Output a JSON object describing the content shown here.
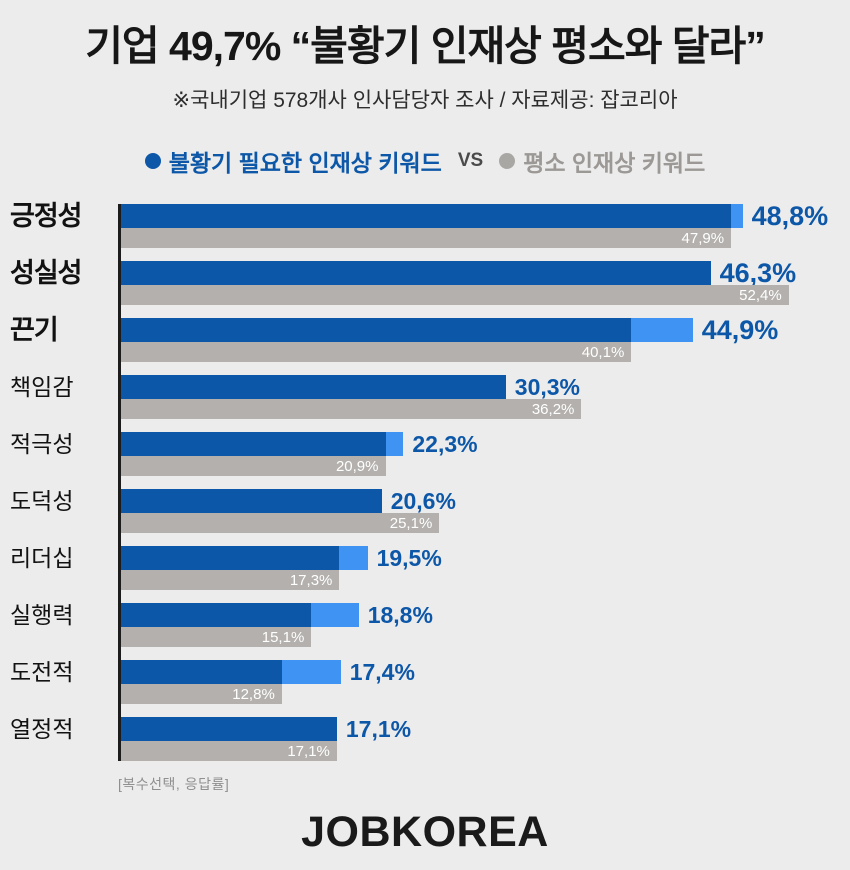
{
  "header": {
    "title": "기업 49,7% “불황기 인재상 평소와 달라”",
    "subtitle": "※국내기업 578개사 인사담당자 조사  / 자료제공: 잡코리아"
  },
  "legend": {
    "series1_label": "불황기 필요한 인재상 키워드",
    "vs_label": "VS",
    "series2_label": "평소 인재상 키워드"
  },
  "chart_data": {
    "type": "bar",
    "orientation": "horizontal",
    "title": "기업 49,7% “불황기 인재상 평소와 달라”",
    "categories": [
      "긍정성",
      "성실성",
      "끈기",
      "책임감",
      "적극성",
      "도덕성",
      "리더십",
      "실행력",
      "도전적",
      "열정적"
    ],
    "series": [
      {
        "name": "불황기 필요한 인재상 키워드",
        "color": "#0d57a8",
        "excess_color": "#3f93f2",
        "values": [
          48.8,
          46.3,
          44.9,
          30.3,
          22.3,
          20.6,
          19.5,
          18.8,
          17.4,
          17.1
        ],
        "labels": [
          "48,8%",
          "46,3%",
          "44,9%",
          "30,3%",
          "22,3%",
          "20,6%",
          "19,5%",
          "18,8%",
          "17,4%",
          "17,1%"
        ]
      },
      {
        "name": "평소 인재상 키워드",
        "color": "#b3b0ad",
        "values": [
          47.9,
          52.4,
          40.1,
          36.2,
          20.9,
          25.1,
          17.3,
          15.1,
          12.8,
          17.1
        ],
        "labels": [
          "47,9%",
          "52,4%",
          "40,1%",
          "36,2%",
          "20,9%",
          "25,1%",
          "17,3%",
          "15,1%",
          "12,8%",
          "17,1%"
        ]
      }
    ],
    "xlim": [
      0,
      52.4
    ],
    "grid": false,
    "legend_position": "top",
    "note": "[복수선택, 응답률]"
  },
  "footer": {
    "logo": "JOBKOREA"
  },
  "colors": {
    "background": "#ececec",
    "primary_blue": "#0d57a8",
    "light_blue": "#3f93f2",
    "bar_gray": "#b3b0ad",
    "legend_gray": "#9b9895",
    "axis": "#1c1c1c"
  }
}
